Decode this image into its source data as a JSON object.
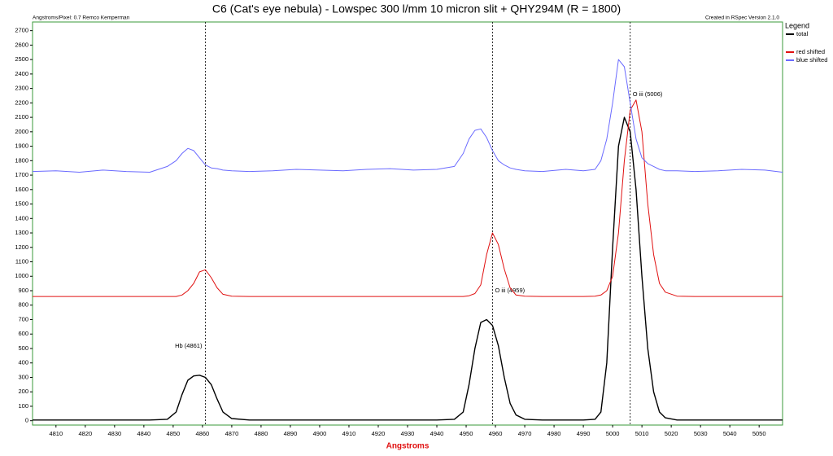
{
  "chart_data": {
    "type": "line",
    "title": "C6 (Cat's eye nebula)  - Lowspec 300 l/mm 10 micron slit + QHY294M (R = 1800)",
    "left_note": "Angstroms/Pixel: 0.7 Remco Kemperman",
    "right_note": "Created in RSpec Version 2.1.0",
    "xlabel": "Angstroms",
    "legend_title": "Legend",
    "x": [
      4802,
      4810,
      4818,
      4826,
      4834,
      4842,
      4848,
      4851,
      4853,
      4855,
      4857,
      4859,
      4861,
      4863,
      4865,
      4867,
      4870,
      4876,
      4884,
      4892,
      4900,
      4908,
      4916,
      4924,
      4932,
      4940,
      4946,
      4949,
      4951,
      4953,
      4955,
      4957,
      4959,
      4961,
      4963,
      4965,
      4967,
      4970,
      4976,
      4984,
      4990,
      4994,
      4996,
      4998,
      5000,
      5002,
      5004,
      5006,
      5008,
      5010,
      5012,
      5014,
      5016,
      5018,
      5022,
      5028,
      5036,
      5044,
      5052,
      5058
    ],
    "series": [
      {
        "name": "total",
        "color": "#000000",
        "values": [
          5,
          5,
          5,
          5,
          5,
          5,
          10,
          60,
          180,
          280,
          310,
          315,
          300,
          250,
          150,
          60,
          15,
          5,
          5,
          5,
          5,
          5,
          5,
          5,
          5,
          5,
          10,
          60,
          250,
          500,
          680,
          700,
          660,
          520,
          300,
          120,
          40,
          10,
          5,
          5,
          5,
          10,
          60,
          400,
          1200,
          1900,
          2100,
          2000,
          1600,
          1000,
          500,
          200,
          60,
          20,
          5,
          5,
          5,
          5,
          5,
          5
        ]
      },
      {
        "name": "red shifted",
        "color": "#e01010",
        "values": [
          860,
          860,
          860,
          860,
          860,
          860,
          860,
          860,
          870,
          900,
          950,
          1030,
          1045,
          990,
          920,
          875,
          862,
          860,
          860,
          860,
          860,
          860,
          860,
          860,
          860,
          860,
          860,
          860,
          865,
          880,
          940,
          1150,
          1300,
          1220,
          1050,
          920,
          870,
          862,
          860,
          860,
          860,
          862,
          870,
          900,
          1000,
          1300,
          1800,
          2150,
          2220,
          2000,
          1500,
          1150,
          950,
          890,
          862,
          860,
          860,
          860,
          860,
          860
        ]
      },
      {
        "name": "blue shifted",
        "color": "#6a6aff",
        "values": [
          1725,
          1730,
          1720,
          1735,
          1725,
          1720,
          1760,
          1800,
          1850,
          1885,
          1870,
          1820,
          1770,
          1750,
          1745,
          1735,
          1730,
          1725,
          1730,
          1740,
          1735,
          1730,
          1740,
          1745,
          1735,
          1740,
          1760,
          1850,
          1950,
          2010,
          2020,
          1960,
          1870,
          1800,
          1770,
          1750,
          1740,
          1730,
          1725,
          1740,
          1730,
          1740,
          1800,
          1950,
          2200,
          2500,
          2450,
          2200,
          1950,
          1820,
          1780,
          1760,
          1740,
          1730,
          1730,
          1725,
          1730,
          1740,
          1735,
          1720
        ]
      }
    ],
    "vlines": [
      {
        "x": 4861,
        "label": "Hb (4861)"
      },
      {
        "x": 4959,
        "label": "O iii (4959)"
      },
      {
        "x": 5006,
        "label": "O iii (5006)"
      }
    ],
    "xlim": [
      4802,
      5058
    ],
    "ylim": [
      -30,
      2760
    ],
    "xticks": [
      4810,
      4820,
      4830,
      4840,
      4850,
      4860,
      4870,
      4880,
      4890,
      4900,
      4910,
      4920,
      4930,
      4940,
      4950,
      4960,
      4970,
      4980,
      4990,
      5000,
      5010,
      5020,
      5030,
      5040,
      5050
    ],
    "yticks": [
      0,
      100,
      200,
      300,
      400,
      500,
      600,
      700,
      800,
      900,
      1000,
      1100,
      1200,
      1300,
      1400,
      1500,
      1600,
      1700,
      1800,
      1900,
      2000,
      2100,
      2200,
      2300,
      2400,
      2500,
      2600,
      2700
    ],
    "grid": false
  }
}
